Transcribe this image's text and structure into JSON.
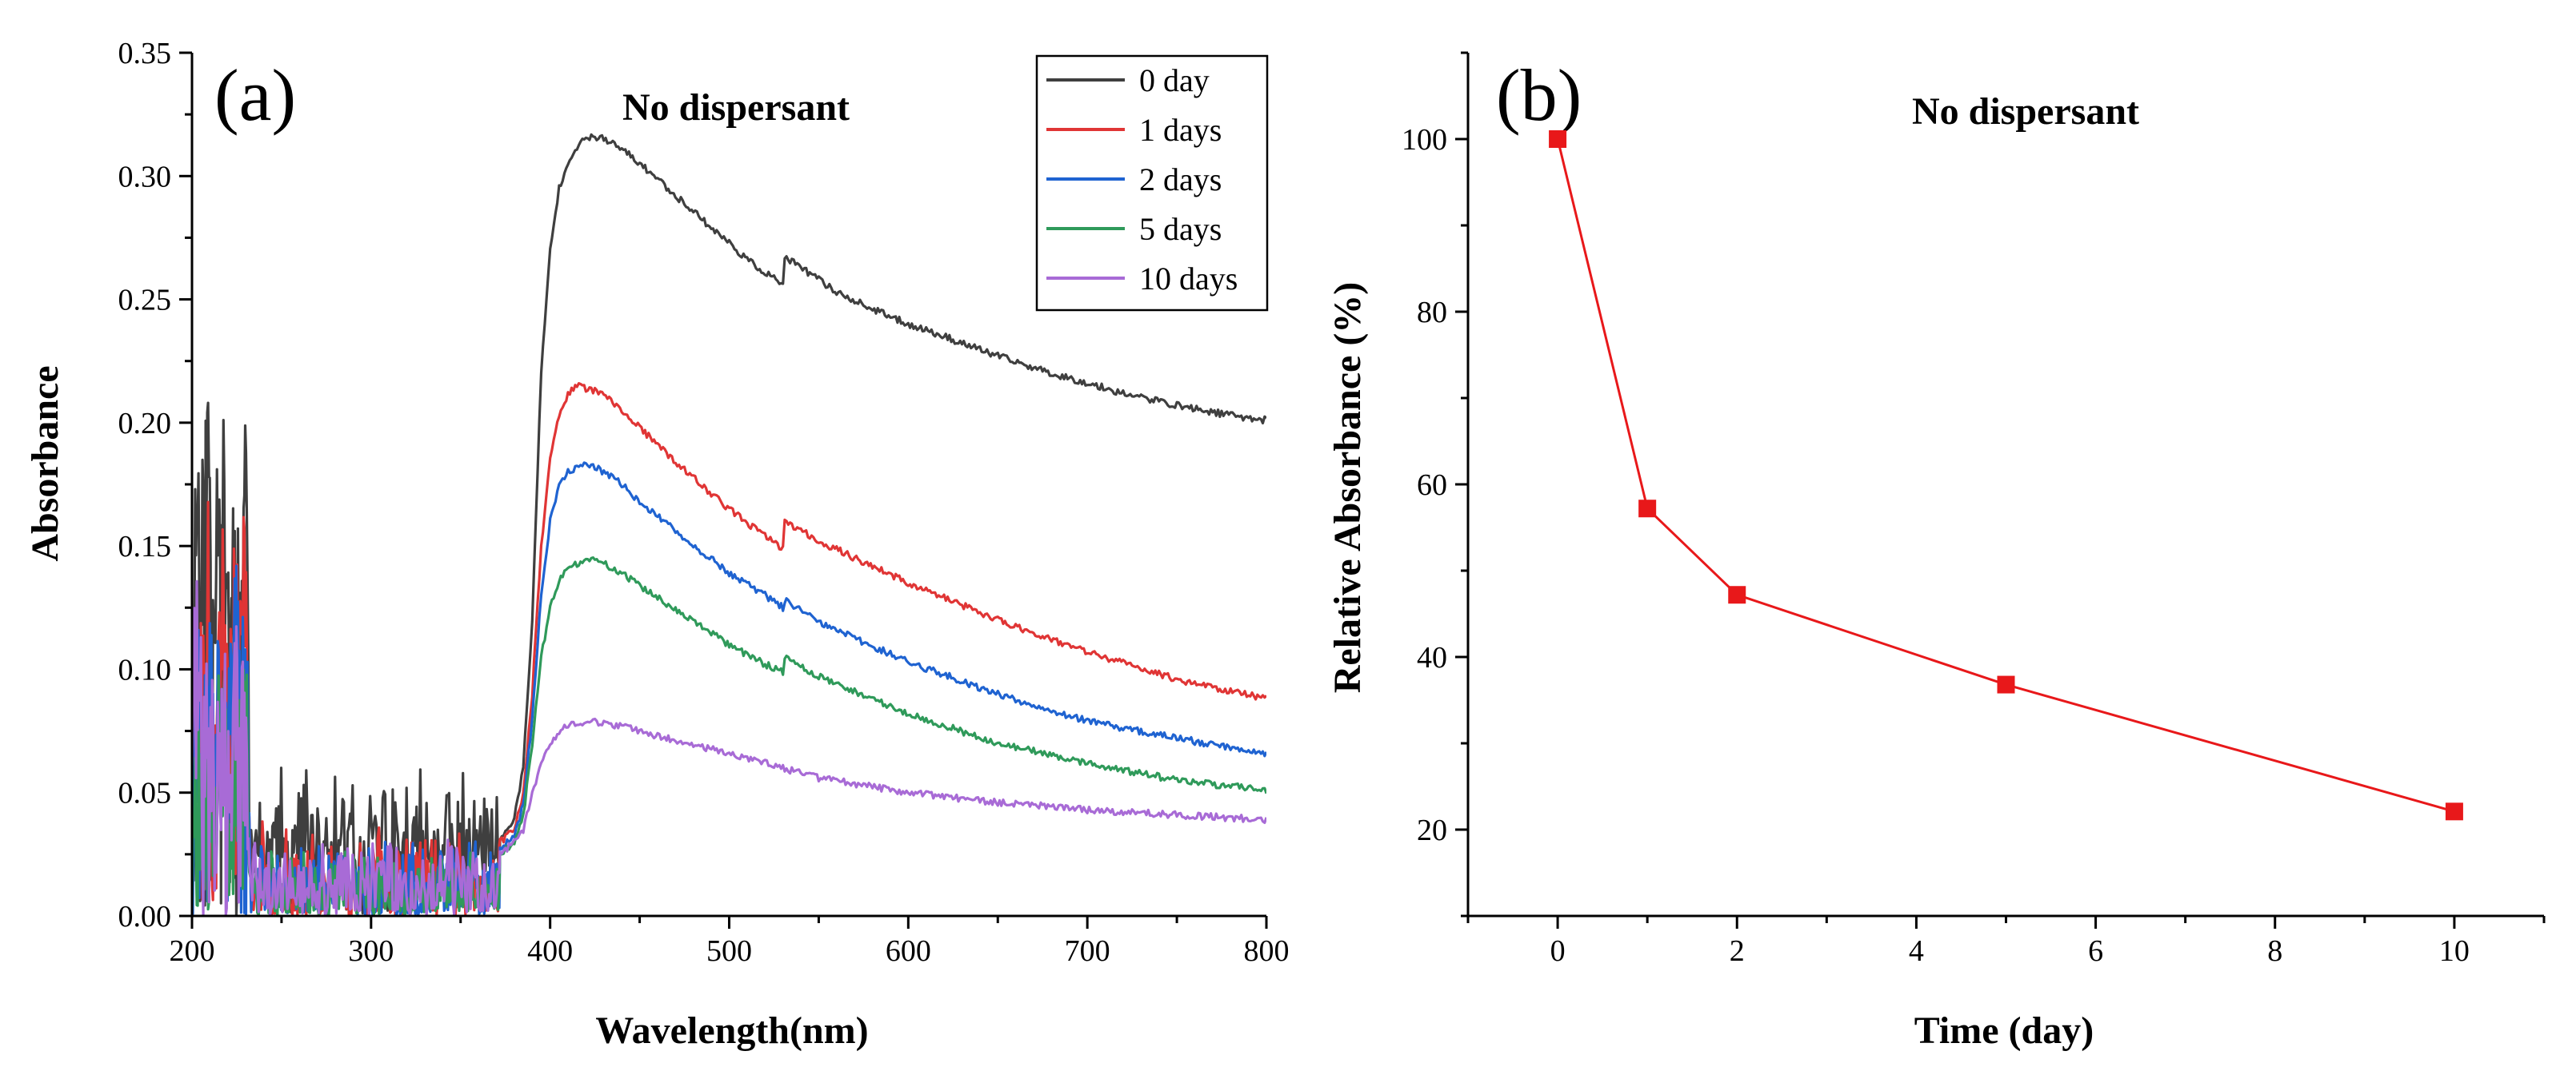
{
  "chart_data": [
    {
      "type": "line",
      "panel_label": "(a)",
      "title": "No dispersant",
      "xlabel": "Wavelength(nm)",
      "ylabel": "Absorbance",
      "xlim": [
        200,
        800
      ],
      "ylim": [
        0,
        0.35
      ],
      "xticks": [
        200,
        300,
        400,
        500,
        600,
        700,
        800
      ],
      "yticks": [
        "0.00",
        "0.05",
        "0.10",
        "0.15",
        "0.20",
        "0.25",
        "0.30",
        "0.35"
      ],
      "legend_position": "top-right",
      "series": [
        {
          "name": "0 day",
          "color": "#3f3f3f",
          "seed": 11,
          "noise_level": 0.024,
          "noise_lo": 0.0,
          "noise_hi": 0.05,
          "x": [
            200,
            203,
            206,
            209,
            212,
            215,
            218,
            221,
            224,
            227,
            230,
            232,
            360,
            372,
            380,
            385,
            390,
            395,
            400,
            405,
            410,
            415,
            420,
            425,
            430,
            440,
            450,
            460,
            470,
            480,
            490,
            500,
            510,
            520,
            530,
            531,
            540,
            550,
            560,
            580,
            600,
            620,
            650,
            680,
            700,
            720,
            750,
            780,
            800
          ],
          "y": [
            0.12,
            0.17,
            0.15,
            0.19,
            0.13,
            0.18,
            0.16,
            0.12,
            0.14,
            0.11,
            0.2,
            0.04,
            0.034,
            0.03,
            0.04,
            0.06,
            0.12,
            0.22,
            0.27,
            0.295,
            0.306,
            0.312,
            0.315,
            0.316,
            0.315,
            0.311,
            0.305,
            0.299,
            0.292,
            0.286,
            0.279,
            0.273,
            0.266,
            0.261,
            0.256,
            0.267,
            0.263,
            0.258,
            0.253,
            0.246,
            0.24,
            0.235,
            0.227,
            0.22,
            0.216,
            0.212,
            0.207,
            0.203,
            0.201
          ]
        },
        {
          "name": "1 days",
          "color": "#e03535",
          "seed": 23,
          "noise_level": 0.02,
          "noise_lo": 0.0,
          "noise_hi": 0.04,
          "x": [
            200,
            203,
            206,
            209,
            212,
            215,
            218,
            221,
            224,
            227,
            230,
            232,
            360,
            372,
            380,
            385,
            390,
            395,
            400,
            405,
            410,
            415,
            420,
            425,
            430,
            440,
            450,
            470,
            500,
            520,
            530,
            531,
            550,
            600,
            650,
            700,
            750,
            800
          ],
          "y": [
            0.06,
            0.1,
            0.08,
            0.13,
            0.07,
            0.11,
            0.12,
            0.09,
            0.13,
            0.1,
            0.15,
            0.03,
            0.02,
            0.03,
            0.035,
            0.05,
            0.09,
            0.15,
            0.185,
            0.203,
            0.212,
            0.215,
            0.214,
            0.213,
            0.211,
            0.205,
            0.198,
            0.184,
            0.165,
            0.154,
            0.149,
            0.16,
            0.152,
            0.135,
            0.12,
            0.107,
            0.096,
            0.088
          ]
        },
        {
          "name": "2 days",
          "color": "#1f63d1",
          "seed": 37,
          "noise_level": 0.018,
          "noise_lo": 0.0,
          "noise_hi": 0.035,
          "x": [
            200,
            203,
            206,
            209,
            212,
            215,
            218,
            221,
            224,
            227,
            230,
            232,
            360,
            372,
            380,
            385,
            390,
            395,
            400,
            405,
            410,
            415,
            420,
            425,
            430,
            440,
            450,
            470,
            500,
            520,
            530,
            531,
            550,
            600,
            650,
            700,
            750,
            800
          ],
          "y": [
            0.05,
            0.09,
            0.07,
            0.1,
            0.06,
            0.09,
            0.08,
            0.07,
            0.11,
            0.08,
            0.12,
            0.025,
            0.018,
            0.028,
            0.032,
            0.045,
            0.08,
            0.13,
            0.16,
            0.174,
            0.18,
            0.182,
            0.183,
            0.182,
            0.18,
            0.175,
            0.168,
            0.156,
            0.139,
            0.13,
            0.125,
            0.128,
            0.119,
            0.103,
            0.09,
            0.079,
            0.072,
            0.066
          ]
        },
        {
          "name": "5 days",
          "color": "#2f9a5a",
          "seed": 53,
          "noise_level": 0.016,
          "noise_lo": 0.0,
          "noise_hi": 0.03,
          "x": [
            200,
            203,
            206,
            209,
            212,
            215,
            218,
            221,
            224,
            227,
            230,
            232,
            360,
            372,
            380,
            385,
            390,
            395,
            400,
            405,
            410,
            415,
            420,
            425,
            430,
            440,
            450,
            470,
            500,
            520,
            530,
            531,
            550,
            600,
            650,
            700,
            750,
            800
          ],
          "y": [
            0.03,
            0.07,
            0.04,
            0.09,
            0.02,
            0.06,
            0.08,
            0.03,
            0.07,
            0.05,
            0.09,
            0.02,
            0.015,
            0.025,
            0.03,
            0.04,
            0.07,
            0.105,
            0.125,
            0.136,
            0.141,
            0.143,
            0.144,
            0.144,
            0.143,
            0.139,
            0.134,
            0.124,
            0.11,
            0.102,
            0.099,
            0.105,
            0.097,
            0.082,
            0.07,
            0.062,
            0.055,
            0.051
          ]
        },
        {
          "name": "10 days",
          "color": "#a86bd6",
          "seed": 71,
          "noise_level": 0.02,
          "noise_lo": 0.0,
          "noise_hi": 0.035,
          "x": [
            200,
            203,
            206,
            209,
            212,
            215,
            218,
            221,
            224,
            227,
            230,
            232,
            360,
            372,
            380,
            385,
            390,
            395,
            400,
            405,
            410,
            415,
            420,
            425,
            430,
            440,
            450,
            470,
            500,
            520,
            530,
            550,
            600,
            650,
            700,
            750,
            800
          ],
          "y": [
            0.08,
            0.1,
            0.06,
            0.09,
            0.05,
            0.07,
            0.08,
            0.04,
            0.09,
            0.06,
            0.07,
            0.02,
            0.012,
            0.025,
            0.03,
            0.035,
            0.05,
            0.062,
            0.07,
            0.075,
            0.077,
            0.078,
            0.078,
            0.079,
            0.078,
            0.077,
            0.075,
            0.071,
            0.066,
            0.062,
            0.06,
            0.056,
            0.05,
            0.046,
            0.043,
            0.041,
            0.039
          ]
        }
      ]
    },
    {
      "type": "line",
      "panel_label": "(b)",
      "title": "No dispersant",
      "xlabel": "Time (day)",
      "ylabel": "Relative Absorbance (%)",
      "xlim": [
        -1,
        11
      ],
      "ylim": [
        10,
        110
      ],
      "xticks": [
        0,
        2,
        4,
        6,
        8,
        10
      ],
      "yticks": [
        20,
        40,
        60,
        80,
        100
      ],
      "series": [
        {
          "name": "Relative Absorbance",
          "color": "#e8181a",
          "marker": "square",
          "x": [
            0,
            1,
            2,
            5,
            10
          ],
          "y": [
            100,
            57.2,
            47.2,
            36.8,
            22.1
          ]
        }
      ]
    }
  ]
}
